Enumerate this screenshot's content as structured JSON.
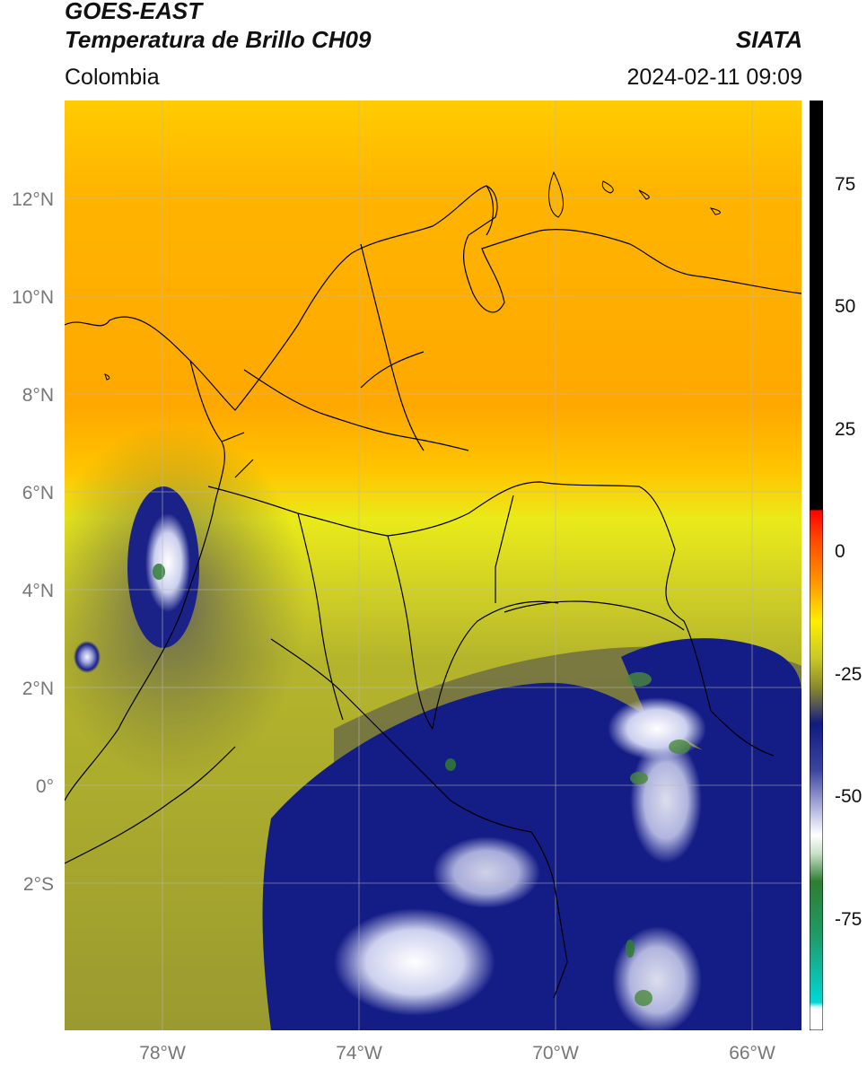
{
  "header": {
    "title": "GOES-EAST",
    "subtitle": "Temperatura de Brillo CH09",
    "brand": "SIATA",
    "region": "Colombia",
    "timestamp": "2024-02-11 09:09"
  },
  "map": {
    "lat_labels": [
      "12°N",
      "10°N",
      "8°N",
      "6°N",
      "4°N",
      "2°N",
      "0°",
      "2°S"
    ],
    "lon_labels": [
      "78°W",
      "74°W",
      "70°W",
      "66°W"
    ],
    "lat_values": [
      12,
      10,
      8,
      6,
      4,
      2,
      0,
      -2
    ],
    "lon_values": [
      -78,
      -74,
      -70,
      -66
    ],
    "extent": {
      "lon_min": -80,
      "lon_max": -65,
      "lat_min": -5,
      "lat_max": 14
    }
  },
  "colorbar": {
    "tick_labels": [
      "75",
      "50",
      "25",
      "0",
      "-25",
      "-50",
      "-75"
    ],
    "tick_values": [
      75,
      50,
      25,
      0,
      -25,
      -50,
      -75
    ],
    "range": [
      -97,
      92
    ],
    "colors": {
      "black": "#000000",
      "red": "#e41a1c",
      "orange": "#ff8c00",
      "yellow": "#ffee00",
      "olive": "#8c8c2a",
      "gray": "#555555",
      "navy": "#101b80",
      "white": "#ffffff",
      "green": "#2e7d32",
      "cyan": "#00d8d8"
    }
  }
}
